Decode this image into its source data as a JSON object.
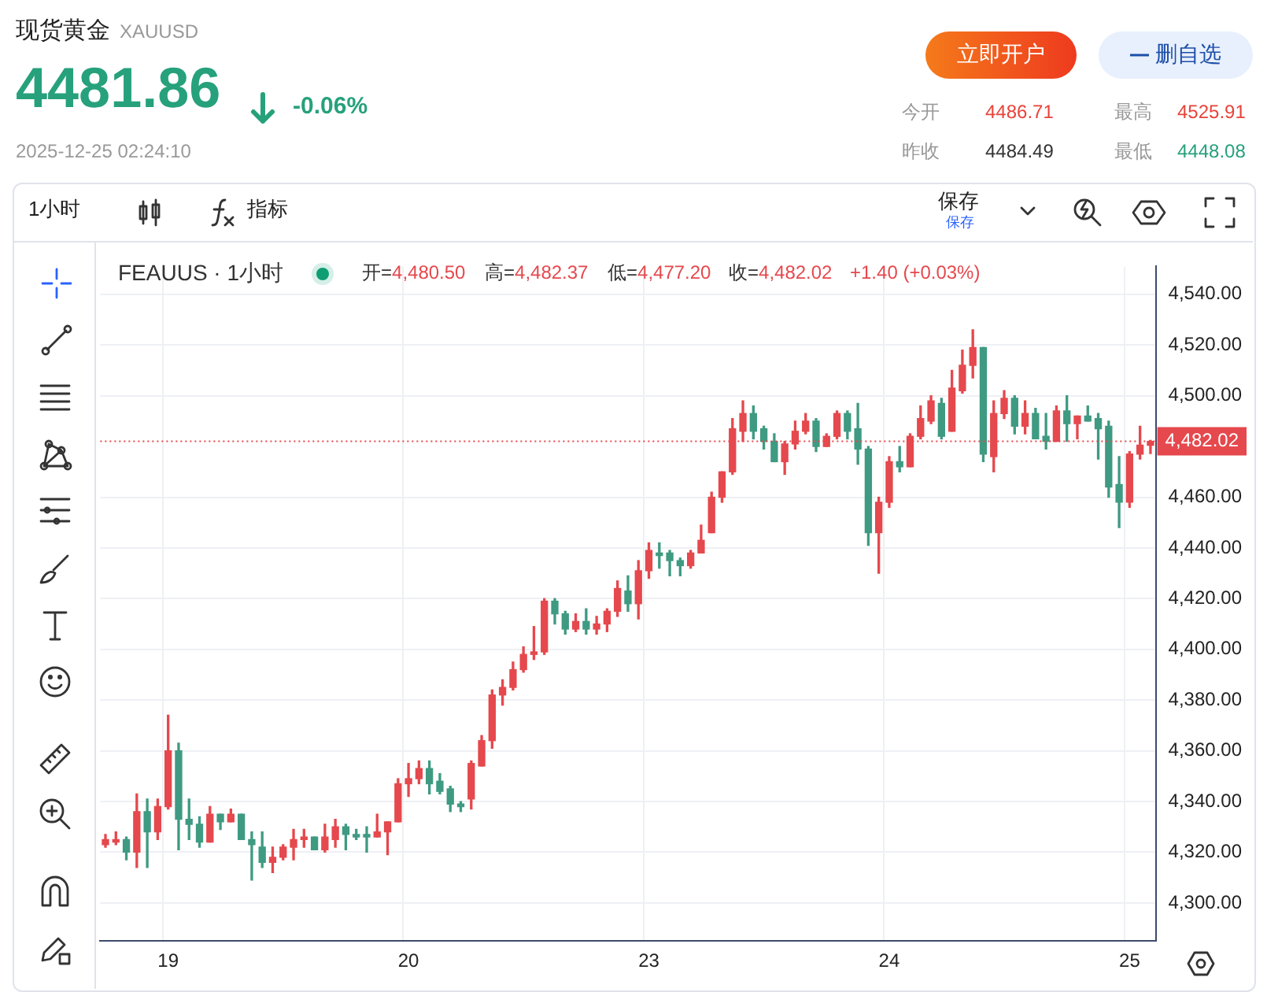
{
  "chart_data": {
    "type": "candlestick",
    "title": "现货黄金",
    "subtitle": "XAUUSD",
    "annotations": [
      "4481.86",
      "-0.06%",
      "2025-12-25 02:24:10",
      "立即开户",
      "删自选",
      "今开",
      "4486.71",
      "最高",
      "4525.91",
      "昨收",
      "4484.49",
      "最低",
      "4448.08",
      "1小时",
      "指标",
      "保存",
      "保存",
      "FEAUUS · 1小时",
      "开=4,480.50",
      "高=4,482.37",
      "低=4,477.20",
      "收=4,482.02",
      "+1.40 (+0.03%)"
    ],
    "categories": [
      null,
      null,
      null,
      null,
      null,
      null,
      "19",
      null,
      null,
      null,
      null,
      null,
      null,
      null,
      null,
      null,
      null,
      null,
      null,
      null,
      null,
      null,
      null,
      null,
      null,
      null,
      null,
      null,
      null,
      "20",
      null,
      null,
      null,
      null,
      null,
      null,
      null,
      null,
      null,
      null,
      null,
      null,
      null,
      null,
      null,
      null,
      null,
      null,
      null,
      null,
      null,
      null,
      "23",
      null,
      null,
      null,
      null,
      null,
      null,
      null,
      null,
      null,
      null,
      null,
      null,
      null,
      null,
      null,
      null,
      null,
      null,
      null,
      null,
      null,
      null,
      "24",
      null,
      null,
      null,
      null,
      null,
      null,
      null,
      null,
      null,
      null,
      null,
      null,
      null,
      null,
      null,
      null,
      null,
      null,
      null,
      null,
      null,
      null,
      "25",
      null,
      null
    ],
    "ohlc": [
      [
        4323,
        4327,
        4322,
        4325
      ],
      [
        4324,
        4328,
        4323,
        4325
      ],
      [
        4325,
        4326,
        4317,
        4320
      ],
      [
        4320,
        4343,
        4314,
        4336
      ],
      [
        4336,
        4341,
        4314,
        4328
      ],
      [
        4328,
        4341,
        4325,
        4338
      ],
      [
        4338,
        4374,
        4337,
        4360
      ],
      [
        4360,
        4363,
        4321,
        4333
      ],
      [
        4333,
        4341,
        4325,
        4331
      ],
      [
        4331,
        4334,
        4322,
        4324
      ],
      [
        4324,
        4338,
        4324,
        4335
      ],
      [
        4335,
        4335,
        4329,
        4332
      ],
      [
        4332,
        4337,
        4332,
        4335
      ],
      [
        4335,
        4335,
        4325,
        4325
      ],
      [
        4325,
        4328,
        4309,
        4323
      ],
      [
        4322,
        4328,
        4314,
        4316
      ],
      [
        4316,
        4322,
        4312,
        4318
      ],
      [
        4318,
        4323,
        4317,
        4322
      ],
      [
        4322,
        4329,
        4317,
        4325
      ],
      [
        4325,
        4329,
        4322,
        4326
      ],
      [
        4326,
        4326,
        4321,
        4321
      ],
      [
        4321,
        4331,
        4320,
        4326
      ],
      [
        4325,
        4333,
        4322,
        4330
      ],
      [
        4330,
        4331,
        4321,
        4327
      ],
      [
        4327,
        4329,
        4325,
        4326
      ],
      [
        4327,
        4330,
        4320,
        4326
      ],
      [
        4326,
        4335,
        4326,
        4328
      ],
      [
        4328,
        4332,
        4319,
        4332
      ],
      [
        4332,
        4349,
        4332,
        4347
      ],
      [
        4347,
        4355,
        4342,
        4349
      ],
      [
        4349,
        4356,
        4347,
        4353
      ],
      [
        4353,
        4356,
        4343,
        4347
      ],
      [
        4348,
        4351,
        4343,
        4344
      ],
      [
        4345,
        4346,
        4336,
        4339
      ],
      [
        4339,
        4340,
        4336,
        4338
      ],
      [
        4341,
        4356,
        4337,
        4355
      ],
      [
        4354,
        4366,
        4354,
        4364
      ],
      [
        4364,
        4384,
        4361,
        4382
      ],
      [
        4382,
        4388,
        4378,
        4385
      ],
      [
        4385,
        4395,
        4384,
        4392
      ],
      [
        4392,
        4401,
        4391,
        4398
      ],
      [
        4398,
        4409,
        4396,
        4399
      ],
      [
        4399,
        4420,
        4398,
        4419
      ],
      [
        4419,
        4420,
        4410,
        4414
      ],
      [
        4414,
        4415,
        4406,
        4408
      ],
      [
        4408,
        4414,
        4407,
        4411
      ],
      [
        4411,
        4416,
        4406,
        4408
      ],
      [
        4408,
        4413,
        4406,
        4410
      ],
      [
        4410,
        4416,
        4407,
        4415
      ],
      [
        4415,
        4427,
        4413,
        4424
      ],
      [
        4423,
        4429,
        4415,
        4418
      ],
      [
        4418,
        4435,
        4412,
        4431
      ],
      [
        4431,
        4442,
        4428,
        4439
      ],
      [
        4438,
        4442,
        4432,
        4437
      ],
      [
        4438,
        4439,
        4429,
        4435
      ],
      [
        4435,
        4436,
        4429,
        4433
      ],
      [
        4433,
        4439,
        4432,
        4438
      ],
      [
        4438,
        4449,
        4438,
        4443
      ],
      [
        4446,
        4462,
        4446,
        4460
      ],
      [
        4460,
        4470,
        4458,
        4470
      ],
      [
        4470,
        4491,
        4469,
        4487
      ],
      [
        4486,
        4498,
        4482,
        4493
      ],
      [
        4493,
        4496,
        4483,
        4486
      ],
      [
        4487,
        4488,
        4479,
        4482
      ],
      [
        4482,
        4485,
        4474,
        4474
      ],
      [
        4474,
        4482,
        4469,
        4481
      ],
      [
        4481,
        4490,
        4479,
        4486
      ],
      [
        4486,
        4493,
        4485,
        4490
      ],
      [
        4490,
        4491,
        4478,
        4480
      ],
      [
        4480,
        4485,
        4480,
        4484
      ],
      [
        4484,
        4494,
        4483,
        4493
      ],
      [
        4493,
        4494,
        4483,
        4486
      ],
      [
        4487,
        4497,
        4473,
        4479
      ],
      [
        4479,
        4480,
        4441,
        4446
      ],
      [
        4446,
        4460,
        4430,
        4458
      ],
      [
        4458,
        4476,
        4456,
        4474
      ],
      [
        4474,
        4480,
        4470,
        4472
      ],
      [
        4472,
        4485,
        4472,
        4484
      ],
      [
        4484,
        4496,
        4483,
        4491
      ],
      [
        4490,
        4500,
        4489,
        4498
      ],
      [
        4497,
        4499,
        4483,
        4484
      ],
      [
        4486,
        4510,
        4486,
        4503
      ],
      [
        4502,
        4518,
        4501,
        4512
      ],
      [
        4512,
        4526,
        4507,
        4519
      ],
      [
        4519,
        4519,
        4474,
        4477
      ],
      [
        4476,
        4498,
        4470,
        4493
      ],
      [
        4493,
        4502,
        4491,
        4499
      ],
      [
        4499,
        4500,
        4485,
        4488
      ],
      [
        4488,
        4498,
        4485,
        4493
      ],
      [
        4493,
        4495,
        4483,
        4483
      ],
      [
        4484,
        4493,
        4479,
        4482
      ],
      [
        4482,
        4496,
        4482,
        4494
      ],
      [
        4494,
        4500,
        4482,
        4489
      ],
      [
        4489,
        4492,
        4483,
        4492
      ],
      [
        4492,
        4496,
        4490,
        4490
      ],
      [
        4491,
        4493,
        4475,
        4487
      ],
      [
        4488,
        4490,
        4460,
        4464
      ],
      [
        4465,
        4476,
        4448,
        4458
      ],
      [
        4458,
        4478,
        4456,
        4477
      ],
      [
        4477,
        4488,
        4475,
        4480.5
      ],
      [
        4480.5,
        4482.37,
        4477.2,
        4482.02
      ]
    ],
    "ylim": [
      4285,
      4551
    ],
    "yticks": [
      {
        "value": 4300,
        "label": "4,300.00"
      },
      {
        "value": 4320,
        "label": "4,320.00"
      },
      {
        "value": 4340,
        "label": "4,340.00"
      },
      {
        "value": 4360,
        "label": "4,360.00"
      },
      {
        "value": 4380,
        "label": "4,380.00"
      },
      {
        "value": 4400,
        "label": "4,400.00"
      },
      {
        "value": 4420,
        "label": "4,420.00"
      },
      {
        "value": 4440,
        "label": "4,440.00"
      },
      {
        "value": 4460,
        "label": "4,460.00"
      },
      {
        "value": 4500,
        "label": "4,500.00"
      },
      {
        "value": 4520,
        "label": "4,520.00"
      },
      {
        "value": 4540,
        "label": "4,540.00"
      }
    ],
    "ref_lines": [
      {
        "axis": "y",
        "value": 4482.02,
        "label": "4,482.02",
        "color": "#e5484d",
        "line_style": "dotted"
      }
    ],
    "grid": true
  }
}
